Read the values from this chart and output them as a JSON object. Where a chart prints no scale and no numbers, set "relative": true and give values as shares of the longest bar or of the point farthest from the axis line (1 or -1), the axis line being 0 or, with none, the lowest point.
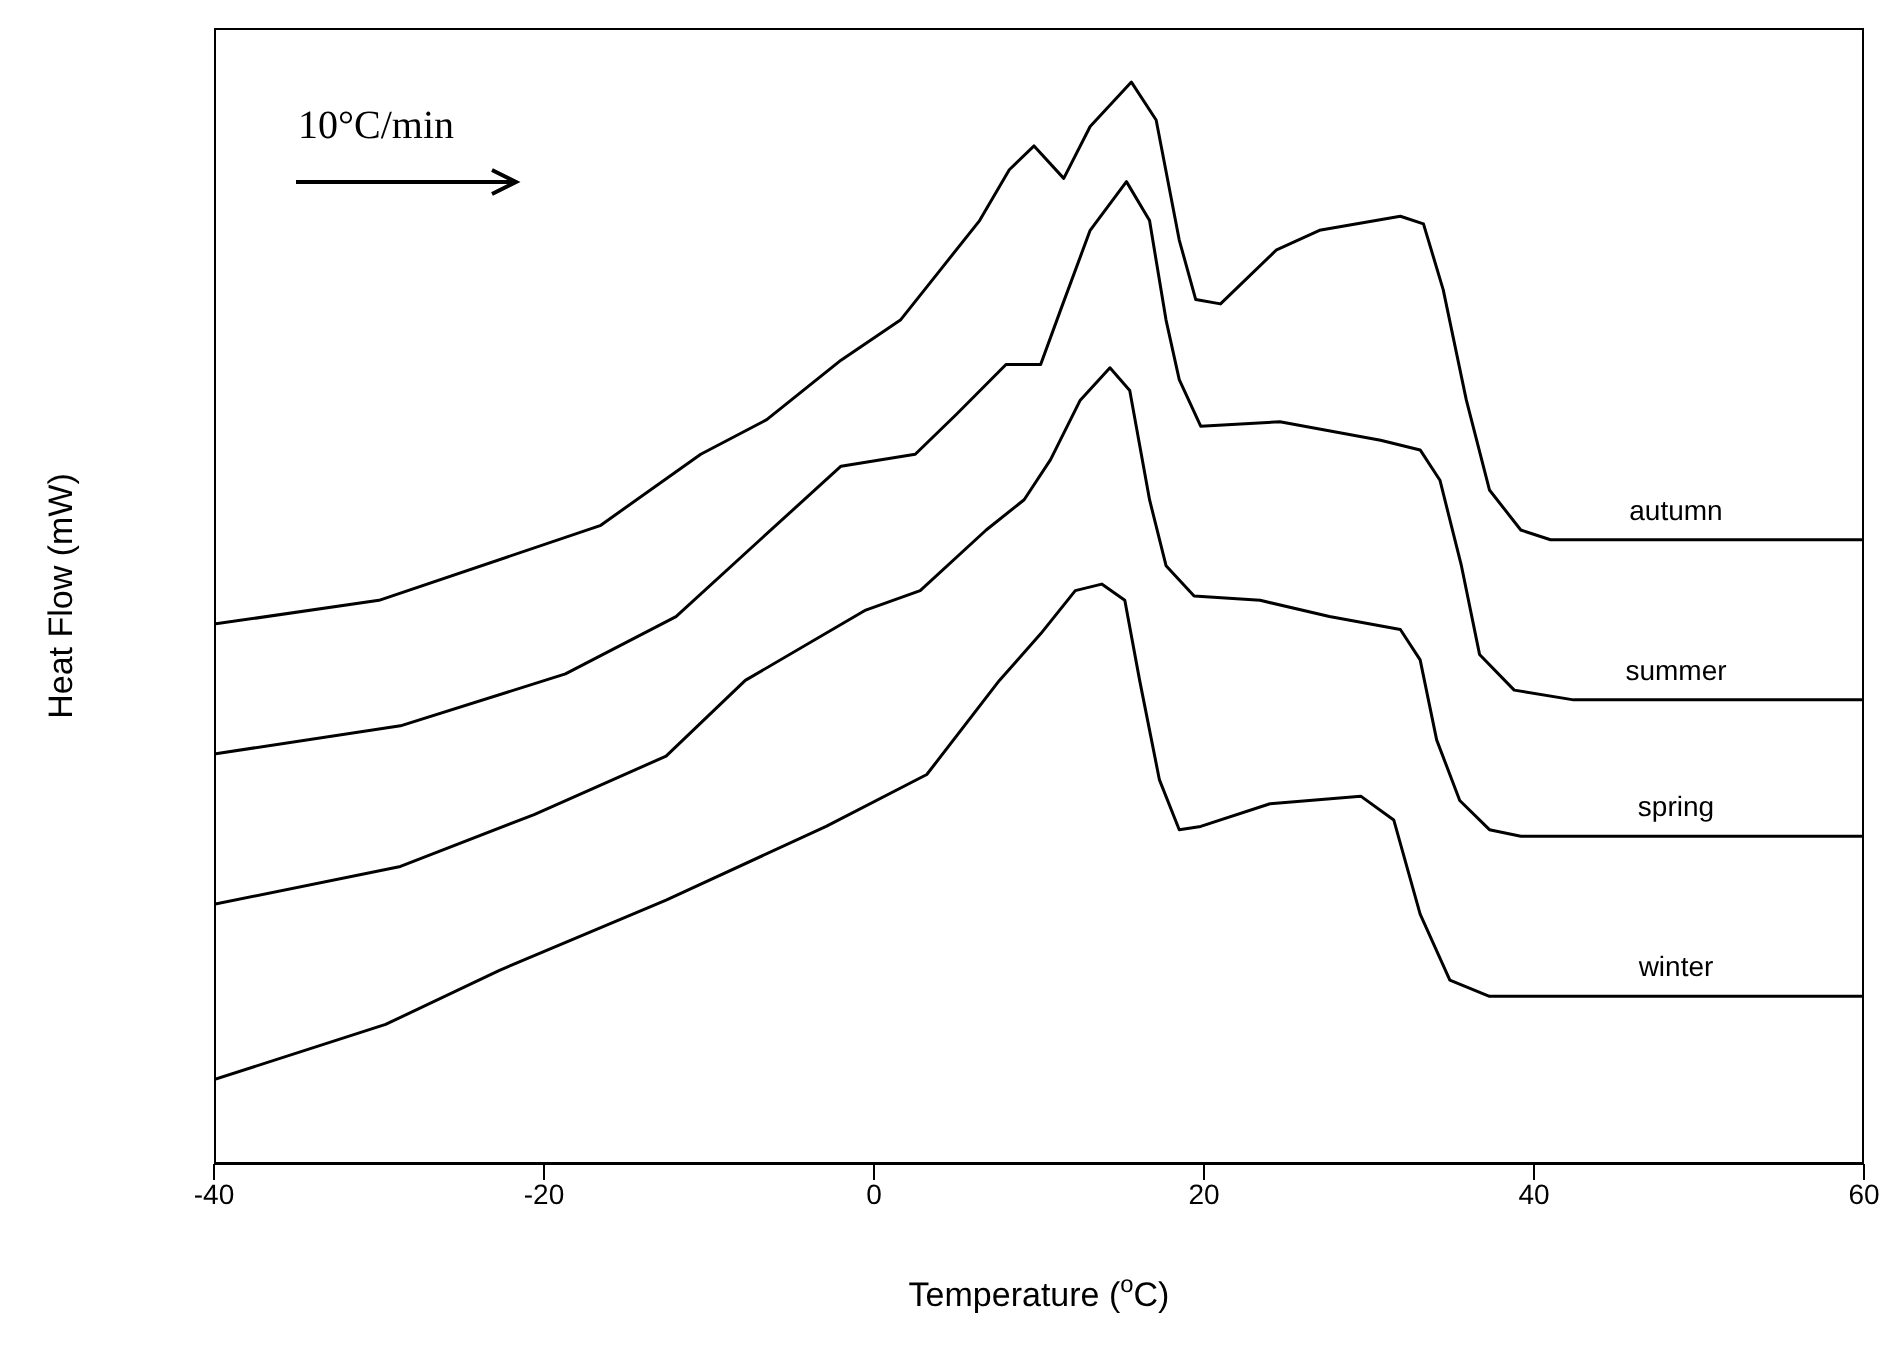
{
  "chart_data": {
    "type": "line",
    "relative": true,
    "xlabel": "Temperature ($^{o}$C)",
    "ylabel": "Heat Flow (mW)",
    "annotations": [
      "10°C/min"
    ],
    "xlim": [
      -40,
      60
    ],
    "xticks": [
      -40,
      -20,
      0,
      20,
      40,
      60
    ],
    "line_style": "solid",
    "series": [
      {
        "name": "autumn",
        "color": "#000000",
        "x": [
          -40,
          -30,
          -16.6,
          -10.5,
          -6.5,
          -2,
          1.6,
          4,
          6.4,
          8.2,
          9.7,
          11.5,
          13.1,
          15.6,
          17.1,
          18.5,
          19.5,
          21,
          24.4,
          27,
          31.9,
          33.3,
          34.5,
          35.9,
          37.3,
          39.2,
          41,
          60
        ],
        "values": [
          0.499,
          0.521,
          0.59,
          0.656,
          0.688,
          0.743,
          0.78,
          0.826,
          0.872,
          0.919,
          0.941,
          0.911,
          0.959,
          1,
          0.965,
          0.854,
          0.799,
          0.795,
          0.845,
          0.863,
          0.876,
          0.869,
          0.808,
          0.706,
          0.623,
          0.586,
          0.577,
          0.577
        ]
      },
      {
        "name": "summer",
        "color": "#000000",
        "x": [
          -40,
          -28.7,
          -18.7,
          -12,
          -6.9,
          -2,
          2.5,
          5,
          8,
          10.1,
          11.3,
          13.1,
          15.3,
          16.7,
          17.7,
          18.5,
          19.8,
          24.6,
          30.7,
          33.1,
          34.3,
          35.6,
          36.7,
          38.8,
          42.4,
          60
        ],
        "values": [
          0.379,
          0.405,
          0.453,
          0.506,
          0.577,
          0.645,
          0.656,
          0.693,
          0.739,
          0.739,
          0.789,
          0.863,
          0.908,
          0.872,
          0.78,
          0.725,
          0.682,
          0.686,
          0.669,
          0.66,
          0.632,
          0.553,
          0.471,
          0.438,
          0.429,
          0.429
        ]
      },
      {
        "name": "spring",
        "color": "#000000",
        "x": [
          -40,
          -28.7,
          -20.6,
          -12.6,
          -7.8,
          -0.5,
          2.8,
          6.8,
          9.1,
          10.7,
          12.5,
          14.3,
          15.5,
          16.7,
          17.7,
          19.4,
          23.4,
          27.6,
          31.9,
          33.1,
          34.1,
          35.5,
          37.3,
          39.2,
          60
        ],
        "values": [
          0.24,
          0.275,
          0.323,
          0.377,
          0.447,
          0.512,
          0.53,
          0.586,
          0.614,
          0.651,
          0.706,
          0.736,
          0.715,
          0.614,
          0.553,
          0.525,
          0.521,
          0.506,
          0.494,
          0.466,
          0.392,
          0.336,
          0.309,
          0.303,
          0.303
        ]
      },
      {
        "name": "winter",
        "color": "#000000",
        "x": [
          -40,
          -29.6,
          -22.7,
          -12.6,
          -2.9,
          3.2,
          7.6,
          10.1,
          12.2,
          13.8,
          15.2,
          16.1,
          17.3,
          18.5,
          19.8,
          24,
          29.5,
          31.5,
          33.1,
          34.9,
          37.3,
          60
        ],
        "values": [
          0.078,
          0.129,
          0.179,
          0.244,
          0.312,
          0.36,
          0.447,
          0.49,
          0.53,
          0.536,
          0.521,
          0.447,
          0.355,
          0.309,
          0.312,
          0.333,
          0.34,
          0.318,
          0.231,
          0.17,
          0.155,
          0.155
        ]
      }
    ]
  }
}
